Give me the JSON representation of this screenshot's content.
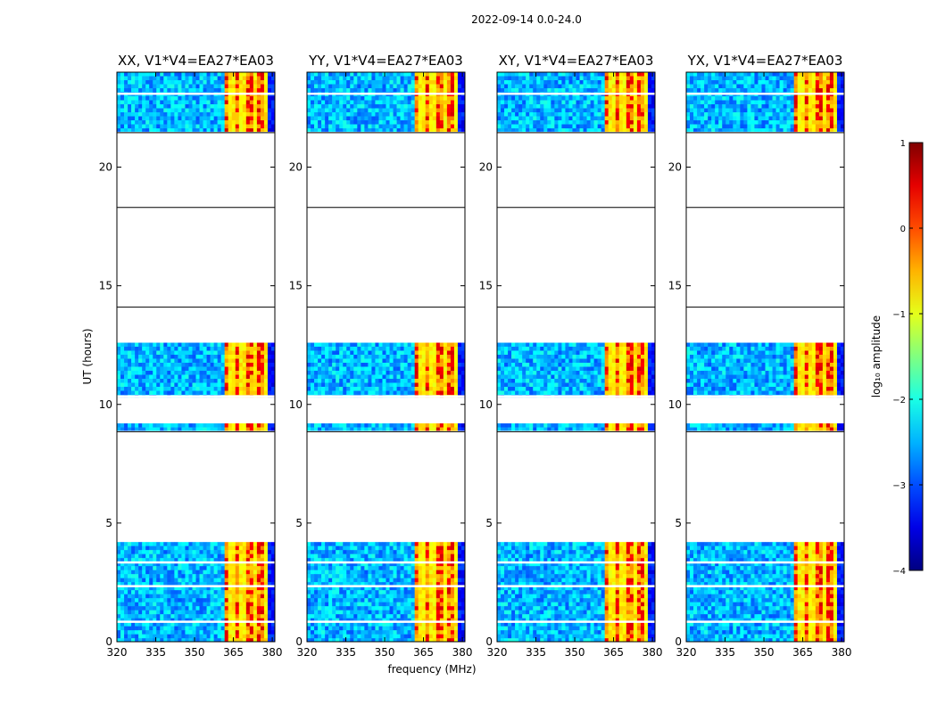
{
  "suptitle": "2022-09-14 0.0-24.0",
  "xlabel": "frequency (MHz)",
  "ylabel": "UT (hours)",
  "colorbar_label": "log₁₀ amplitude",
  "colorbar_ticks": [
    "1",
    "0",
    "−1",
    "−2",
    "−3",
    "−4"
  ],
  "colors": {
    "background": "#ffffff",
    "axes": "#000000",
    "flag_white": "#ffffff"
  },
  "chart_data": {
    "type": "heatmap",
    "colormap": "jet",
    "x_range": [
      320,
      381
    ],
    "y_range": [
      0,
      24
    ],
    "color_range": [
      -4,
      1
    ],
    "x_ticks": [
      "320",
      "335",
      "350",
      "365",
      "380"
    ],
    "x_tick_values": [
      320,
      335,
      350,
      365,
      380
    ],
    "y_ticks": [
      "0",
      "5",
      "10",
      "15",
      "20"
    ],
    "y_tick_values": [
      0,
      5,
      10,
      15,
      20
    ],
    "panels": [
      {
        "title": "XX, V1*V4=EA27*EA03"
      },
      {
        "title": "YY, V1*V4=EA27*EA03"
      },
      {
        "title": "XY, V1*V4=EA27*EA03"
      },
      {
        "title": "YX, V1*V4=EA27*EA03"
      }
    ],
    "data_time_blocks_hours": [
      [
        0.0,
        4.2
      ],
      [
        8.9,
        9.2
      ],
      [
        10.3,
        12.6
      ],
      [
        21.5,
        24.0
      ]
    ],
    "blank_separator_lines_hours": [
      18.3,
      14.1,
      8.85,
      10.35,
      2.35,
      0.85,
      3.35,
      23.1,
      21.45
    ],
    "bright_band_mhz": [
      361,
      378
    ],
    "bright_level_log10": [
      -1.0,
      0.6
    ],
    "background_level_log10": [
      -3.6,
      -1.8
    ]
  }
}
